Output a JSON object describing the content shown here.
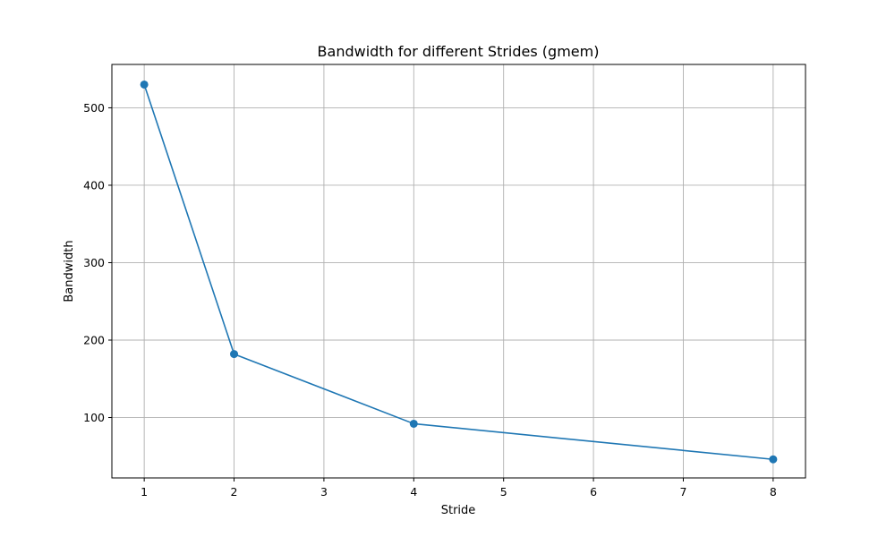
{
  "chart_data": {
    "type": "line",
    "title": "Bandwidth for different Strides (gmem)",
    "xlabel": "Stride",
    "ylabel": "Bandwidth",
    "xlim": [
      0.64,
      8.36
    ],
    "ylim": [
      22,
      556
    ],
    "xticks": [
      1,
      2,
      3,
      4,
      5,
      6,
      7,
      8
    ],
    "yticks": [
      100,
      200,
      300,
      400,
      500
    ],
    "grid": true,
    "colors": {
      "line": "#1f77b4",
      "grid": "#b0b0b0",
      "axes": "#000000"
    },
    "series": [
      {
        "x": [
          1,
          2,
          4,
          8
        ],
        "y": [
          530,
          182,
          92,
          46
        ],
        "marker": "circle"
      }
    ]
  }
}
